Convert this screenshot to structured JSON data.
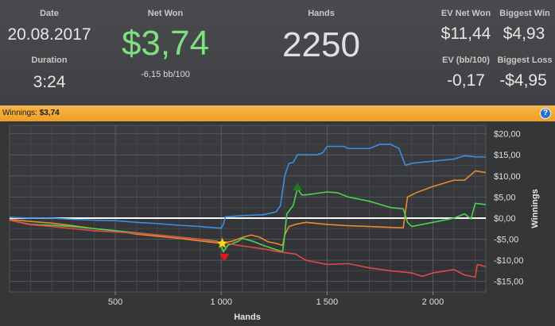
{
  "stats": {
    "date_label": "Date",
    "date_value": "20.08.2017",
    "duration_label": "Duration",
    "duration_value": "3:24",
    "net_won_label": "Net Won",
    "net_won_value": "$3,74",
    "net_won_sub": "-6,15 bb/100",
    "hands_label": "Hands",
    "hands_value": "2250",
    "ev_net_won_label": "EV Net Won",
    "ev_net_won_value": "$11,44",
    "biggest_win_label": "Biggest Win",
    "biggest_win_value": "$4,93",
    "ev_bb_label": "EV (bb/100)",
    "ev_bb_value": "-0,17",
    "biggest_loss_label": "Biggest Loss",
    "biggest_loss_value": "-$4,95"
  },
  "winnings_bar": {
    "label": "Winnings:",
    "value": "$3,74",
    "help_label": "?"
  },
  "colors": {
    "net_won": "#7fe07f",
    "blue": "#3d8ee0",
    "orange": "#e88a30",
    "green": "#4fd24f",
    "red": "#e04848",
    "zero_line": "#ffffff"
  },
  "chart_data": {
    "type": "line",
    "xlabel": "Hands",
    "ylabel": "Winnings",
    "xlim": [
      0,
      2250
    ],
    "ylim": [
      -17.5,
      22
    ],
    "x_ticks": [
      500,
      1000,
      1500,
      2000
    ],
    "x_tick_labels": [
      "500",
      "1 000",
      "1 500",
      "2 000"
    ],
    "y_ticks": [
      20,
      15,
      10,
      5,
      0,
      -5,
      -10,
      -15
    ],
    "y_tick_labels": [
      "$20,00",
      "$15,00",
      "$10,00",
      "$5,00",
      "$0,00",
      "-$5,00",
      "-$10,00",
      "-$15,00"
    ],
    "grid": true,
    "series": [
      {
        "color": "#3d8ee0",
        "points": [
          [
            0,
            0.2
          ],
          [
            40,
            0.1
          ],
          [
            100,
            0
          ],
          [
            200,
            0
          ],
          [
            300,
            -0.3
          ],
          [
            400,
            -0.5
          ],
          [
            500,
            -0.6
          ],
          [
            600,
            -1
          ],
          [
            700,
            -1.3
          ],
          [
            800,
            -1.7
          ],
          [
            900,
            -2
          ],
          [
            1000,
            -2.4
          ],
          [
            1010,
            -1.5
          ],
          [
            1020,
            0.3
          ],
          [
            1100,
            0.6
          ],
          [
            1200,
            0.8
          ],
          [
            1260,
            1.5
          ],
          [
            1280,
            3
          ],
          [
            1300,
            10
          ],
          [
            1320,
            13
          ],
          [
            1340,
            13.2
          ],
          [
            1360,
            15
          ],
          [
            1450,
            15
          ],
          [
            1480,
            15.5
          ],
          [
            1500,
            17
          ],
          [
            1580,
            17
          ],
          [
            1600,
            16.5
          ],
          [
            1700,
            16.5
          ],
          [
            1750,
            17.5
          ],
          [
            1800,
            17.5
          ],
          [
            1840,
            16.5
          ],
          [
            1870,
            12.5
          ],
          [
            1900,
            13
          ],
          [
            2000,
            13.5
          ],
          [
            2100,
            14
          ],
          [
            2150,
            14.8
          ],
          [
            2200,
            14.5
          ],
          [
            2250,
            14.5
          ]
        ]
      },
      {
        "color": "#e88a30",
        "points": [
          [
            0,
            -0.3
          ],
          [
            100,
            -0.8
          ],
          [
            200,
            -1.2
          ],
          [
            300,
            -1.8
          ],
          [
            400,
            -2.5
          ],
          [
            500,
            -3
          ],
          [
            600,
            -3.8
          ],
          [
            700,
            -4.3
          ],
          [
            800,
            -4.8
          ],
          [
            900,
            -5.4
          ],
          [
            1000,
            -6
          ],
          [
            1050,
            -5.5
          ],
          [
            1100,
            -4.6
          ],
          [
            1140,
            -4
          ],
          [
            1180,
            -4.5
          ],
          [
            1220,
            -5.6
          ],
          [
            1260,
            -6
          ],
          [
            1290,
            -6.5
          ],
          [
            1300,
            -4
          ],
          [
            1320,
            -2
          ],
          [
            1350,
            -1.5
          ],
          [
            1400,
            -1
          ],
          [
            1500,
            -1.5
          ],
          [
            1600,
            -1.8
          ],
          [
            1700,
            -2
          ],
          [
            1800,
            -2.2
          ],
          [
            1860,
            -2.3
          ],
          [
            1880,
            5
          ],
          [
            1920,
            6
          ],
          [
            2000,
            7.5
          ],
          [
            2100,
            9
          ],
          [
            2150,
            9
          ],
          [
            2200,
            11.2
          ],
          [
            2250,
            10.8
          ]
        ]
      },
      {
        "color": "#4fd24f",
        "points": [
          [
            0,
            -0.5
          ],
          [
            100,
            -1.5
          ],
          [
            200,
            -1.7
          ],
          [
            300,
            -2
          ],
          [
            400,
            -2.5
          ],
          [
            500,
            -3
          ],
          [
            600,
            -3.5
          ],
          [
            700,
            -4
          ],
          [
            800,
            -4.5
          ],
          [
            900,
            -5
          ],
          [
            980,
            -5.5
          ],
          [
            1000,
            -6.5
          ],
          [
            1010,
            -8
          ],
          [
            1030,
            -6.5
          ],
          [
            1080,
            -5.5
          ],
          [
            1100,
            -4.8
          ],
          [
            1150,
            -5.5
          ],
          [
            1200,
            -6.5
          ],
          [
            1260,
            -7.5
          ],
          [
            1290,
            -8
          ],
          [
            1300,
            -4
          ],
          [
            1310,
            1
          ],
          [
            1340,
            3
          ],
          [
            1360,
            7
          ],
          [
            1380,
            5.5
          ],
          [
            1400,
            5.5
          ],
          [
            1500,
            6.2
          ],
          [
            1550,
            6
          ],
          [
            1600,
            5
          ],
          [
            1700,
            4
          ],
          [
            1800,
            2.5
          ],
          [
            1860,
            2.2
          ],
          [
            1880,
            -1
          ],
          [
            1900,
            -2
          ],
          [
            2000,
            -1
          ],
          [
            2100,
            0
          ],
          [
            2150,
            1
          ],
          [
            2180,
            -0.2
          ],
          [
            2200,
            3.5
          ],
          [
            2250,
            3.2
          ]
        ]
      },
      {
        "color": "#e04848",
        "points": [
          [
            0,
            -0.5
          ],
          [
            100,
            -1.6
          ],
          [
            200,
            -2
          ],
          [
            300,
            -2.5
          ],
          [
            400,
            -3
          ],
          [
            500,
            -3.3
          ],
          [
            600,
            -3.6
          ],
          [
            700,
            -4
          ],
          [
            800,
            -4.6
          ],
          [
            900,
            -5
          ],
          [
            1000,
            -5.8
          ],
          [
            1100,
            -6.6
          ],
          [
            1200,
            -7.3
          ],
          [
            1260,
            -7.9
          ],
          [
            1300,
            -8.2
          ],
          [
            1350,
            -8.5
          ],
          [
            1400,
            -10
          ],
          [
            1500,
            -11
          ],
          [
            1600,
            -10.8
          ],
          [
            1700,
            -11.8
          ],
          [
            1800,
            -12.5
          ],
          [
            1900,
            -13
          ],
          [
            1950,
            -13.8
          ],
          [
            2000,
            -13
          ],
          [
            2100,
            -12.2
          ],
          [
            2150,
            -13.5
          ],
          [
            2200,
            -14
          ],
          [
            2210,
            -11
          ],
          [
            2250,
            -11.5
          ]
        ]
      }
    ],
    "markers": [
      {
        "type": "star",
        "x": 1005,
        "y": -6,
        "color": "#f8e020"
      },
      {
        "type": "down-triangle",
        "x": 1015,
        "y": -9.4,
        "color": "#e01818"
      },
      {
        "type": "up-triangle",
        "x": 1360,
        "y": 7.5,
        "color": "#1f7a1f"
      }
    ]
  }
}
